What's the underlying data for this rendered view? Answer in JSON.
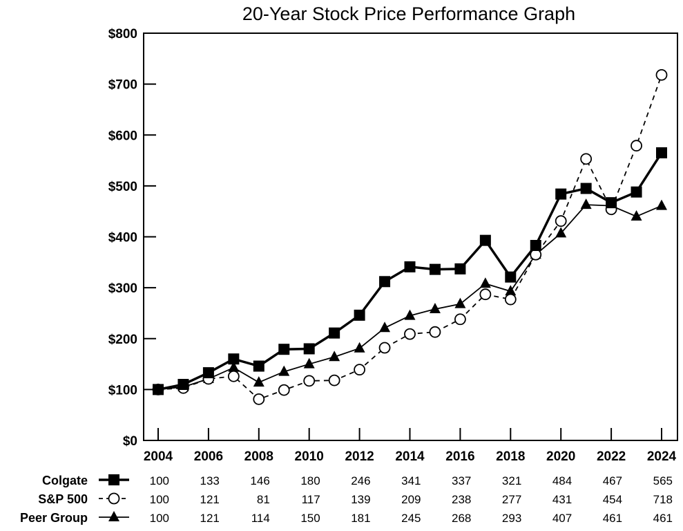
{
  "chart_data": {
    "type": "line",
    "title": "20-Year Stock Price Performance Graph",
    "xlabel": "",
    "ylabel": "",
    "ylim": [
      0,
      800
    ],
    "xlim": [
      2004,
      2024
    ],
    "grid": false,
    "y_ticks": [
      "$0",
      "$100",
      "$200",
      "$300",
      "$400",
      "$500",
      "$600",
      "$700",
      "$800"
    ],
    "x_ticks": [
      "2004",
      "2006",
      "2008",
      "2010",
      "2012",
      "2014",
      "2016",
      "2018",
      "2020",
      "2022",
      "2024"
    ],
    "x": [
      2004,
      2005,
      2006,
      2007,
      2008,
      2009,
      2010,
      2011,
      2012,
      2013,
      2014,
      2015,
      2016,
      2017,
      2018,
      2019,
      2020,
      2021,
      2022,
      2023,
      2024
    ],
    "series": [
      {
        "name": "Colgate",
        "marker": "square-filled",
        "line": "solid-thick",
        "color": "#000000",
        "values": [
          100,
          110,
          133,
          160,
          146,
          179,
          180,
          211,
          246,
          312,
          341,
          336,
          337,
          393,
          321,
          383,
          484,
          495,
          467,
          488,
          565
        ]
      },
      {
        "name": "S&P 500",
        "marker": "circle-open",
        "line": "dashed",
        "color": "#000000",
        "values": [
          100,
          103,
          121,
          126,
          81,
          99,
          117,
          118,
          139,
          182,
          209,
          213,
          238,
          287,
          277,
          365,
          431,
          553,
          454,
          579,
          718
        ]
      },
      {
        "name": "Peer Group",
        "marker": "triangle-filled",
        "line": "solid-thin",
        "color": "#000000",
        "values": [
          100,
          105,
          121,
          143,
          114,
          135,
          150,
          164,
          181,
          221,
          245,
          258,
          268,
          308,
          293,
          365,
          407,
          463,
          461,
          440,
          461
        ]
      }
    ],
    "table": {
      "columns": [
        "2004",
        "2006",
        "2008",
        "2010",
        "2012",
        "2014",
        "2016",
        "2018",
        "2020",
        "2022",
        "2024"
      ],
      "rows": [
        {
          "label": "Colgate",
          "values": [
            "100",
            "133",
            "146",
            "180",
            "246",
            "341",
            "337",
            "321",
            "484",
            "467",
            "565"
          ]
        },
        {
          "label": "S&P 500",
          "values": [
            "100",
            "121",
            "81",
            "117",
            "139",
            "209",
            "238",
            "277",
            "431",
            "454",
            "718"
          ]
        },
        {
          "label": "Peer Group",
          "values": [
            "100",
            "121",
            "114",
            "150",
            "181",
            "245",
            "268",
            "293",
            "407",
            "461",
            "461"
          ]
        }
      ]
    }
  }
}
